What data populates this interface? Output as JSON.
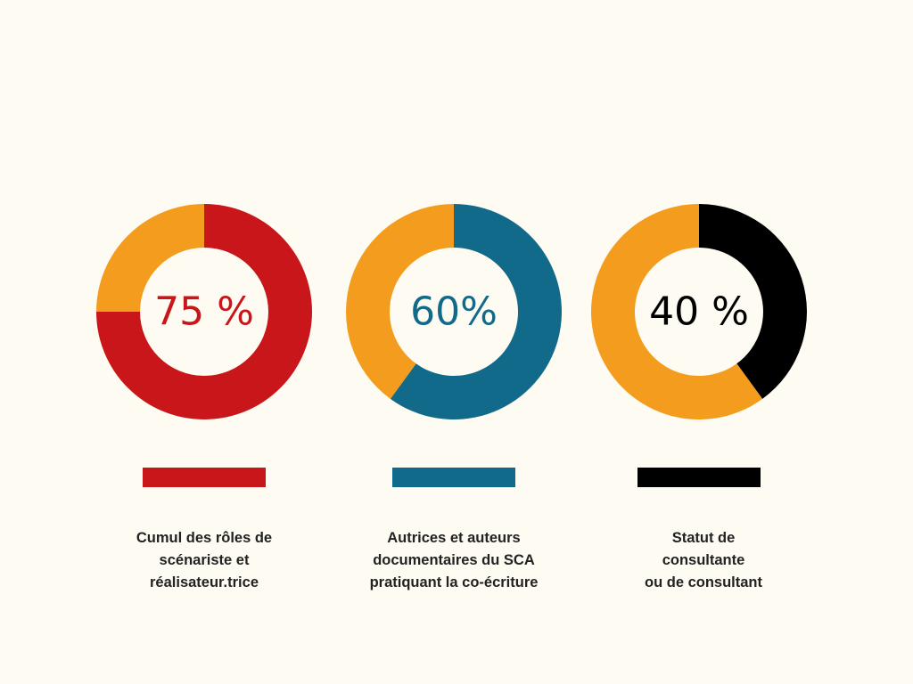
{
  "chart_data": [
    {
      "type": "pie",
      "donut": true,
      "value_label": "75 %",
      "values": [
        75,
        25
      ],
      "color": "#c8161a",
      "rest_color": "#f39c1e",
      "caption": [
        "Cumul des rôles de",
        "scénariste et",
        "réalisateur.trice"
      ]
    },
    {
      "type": "pie",
      "donut": true,
      "value_label": "60%",
      "values": [
        60,
        40
      ],
      "color": "#126a8a",
      "rest_color": "#f39c1e",
      "caption": [
        "Autrices et auteurs",
        "documentaires du SCA",
        "pratiquant la co-écriture"
      ]
    },
    {
      "type": "pie",
      "donut": true,
      "value_label": "40 %",
      "values": [
        40,
        60
      ],
      "color": "#000000",
      "rest_color": "#f39c1e",
      "caption": [
        "Statut de",
        "consultante",
        "ou de consultant"
      ]
    }
  ],
  "background": "#fefbf2"
}
